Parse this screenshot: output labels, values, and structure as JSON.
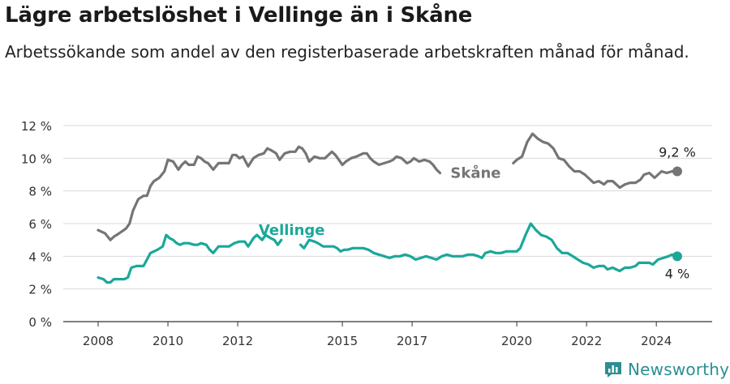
{
  "title": "Lägre arbetslöshet i Vellinge än i Skåne",
  "subtitle": "Arbetssökande som andel av den registerbaserade arbetskraften månad för månad.",
  "logo": {
    "text": "Newsworthy",
    "icon": "newsworthy-logo-icon"
  },
  "colors": {
    "skane": "#757575",
    "vellinge": "#1aa89a",
    "grid": "#d9d9d9",
    "text": "#1a1a1a"
  },
  "chart_data": {
    "type": "line",
    "title": "Lägre arbetslöshet i Vellinge än i Skåne",
    "xlabel": "",
    "ylabel": "",
    "ylim": [
      0,
      12
    ],
    "y_ticks": [
      0,
      2,
      4,
      6,
      8,
      10,
      12
    ],
    "y_tick_labels": [
      "0 %",
      "2 %",
      "4 %",
      "6 %",
      "8 %",
      "10 %",
      "12 %"
    ],
    "x_ticks": [
      2008,
      2010,
      2012,
      2015,
      2017,
      2020,
      2022,
      2024
    ],
    "x_tick_labels": [
      "2008",
      "2010",
      "2012",
      "2015",
      "2017",
      "2020",
      "2022",
      "2024"
    ],
    "grid": true,
    "series": [
      {
        "name": "Skåne",
        "color": "#757575",
        "end_label": "9,2 %",
        "points": [
          [
            2008.0,
            5.6
          ],
          [
            2008.2,
            5.4
          ],
          [
            2008.35,
            5.0
          ],
          [
            2008.45,
            5.2
          ],
          [
            2008.6,
            5.4
          ],
          [
            2008.8,
            5.7
          ],
          [
            2008.9,
            6.0
          ],
          [
            2009.0,
            6.8
          ],
          [
            2009.15,
            7.5
          ],
          [
            2009.3,
            7.7
          ],
          [
            2009.4,
            7.7
          ],
          [
            2009.5,
            8.3
          ],
          [
            2009.6,
            8.6
          ],
          [
            2009.75,
            8.8
          ],
          [
            2009.9,
            9.2
          ],
          [
            2010.0,
            9.9
          ],
          [
            2010.15,
            9.8
          ],
          [
            2010.3,
            9.3
          ],
          [
            2010.4,
            9.6
          ],
          [
            2010.5,
            9.8
          ],
          [
            2010.6,
            9.6
          ],
          [
            2010.75,
            9.6
          ],
          [
            2010.85,
            10.1
          ],
          [
            2010.95,
            10.0
          ],
          [
            2011.05,
            9.8
          ],
          [
            2011.15,
            9.7
          ],
          [
            2011.3,
            9.3
          ],
          [
            2011.45,
            9.7
          ],
          [
            2011.6,
            9.7
          ],
          [
            2011.75,
            9.7
          ],
          [
            2011.85,
            10.2
          ],
          [
            2011.95,
            10.2
          ],
          [
            2012.05,
            10.0
          ],
          [
            2012.15,
            10.1
          ],
          [
            2012.3,
            9.5
          ],
          [
            2012.45,
            10.0
          ],
          [
            2012.6,
            10.2
          ],
          [
            2012.75,
            10.3
          ],
          [
            2012.85,
            10.6
          ],
          [
            2012.95,
            10.5
          ],
          [
            2013.1,
            10.3
          ],
          [
            2013.2,
            9.9
          ],
          [
            2013.35,
            10.3
          ],
          [
            2013.5,
            10.4
          ],
          [
            2013.65,
            10.4
          ],
          [
            2013.75,
            10.7
          ],
          [
            2013.85,
            10.6
          ],
          [
            2013.95,
            10.3
          ],
          [
            2014.05,
            9.8
          ],
          [
            2014.2,
            10.1
          ],
          [
            2014.35,
            10.0
          ],
          [
            2014.5,
            10.0
          ],
          [
            2014.6,
            10.2
          ],
          [
            2014.7,
            10.4
          ],
          [
            2014.8,
            10.2
          ],
          [
            2014.9,
            9.9
          ],
          [
            2015.0,
            9.6
          ],
          [
            2015.1,
            9.8
          ],
          [
            2015.25,
            10.0
          ],
          [
            2015.4,
            10.1
          ],
          [
            2015.5,
            10.2
          ],
          [
            2015.6,
            10.3
          ],
          [
            2015.7,
            10.3
          ],
          [
            2015.8,
            10.0
          ],
          [
            2015.9,
            9.8
          ],
          [
            2016.05,
            9.6
          ],
          [
            2016.2,
            9.7
          ],
          [
            2016.35,
            9.8
          ],
          [
            2016.45,
            9.9
          ],
          [
            2016.55,
            10.1
          ],
          [
            2016.7,
            10.0
          ],
          [
            2016.85,
            9.7
          ],
          [
            2016.95,
            9.8
          ],
          [
            2017.05,
            10.0
          ],
          [
            2017.2,
            9.8
          ],
          [
            2017.35,
            9.9
          ],
          [
            2017.5,
            9.8
          ],
          [
            2017.6,
            9.6
          ],
          [
            2017.7,
            9.3
          ],
          [
            2017.8,
            9.1
          ],
          null,
          [
            2019.9,
            9.7
          ],
          [
            2020.0,
            9.9
          ],
          [
            2020.15,
            10.1
          ],
          [
            2020.3,
            11.0
          ],
          [
            2020.45,
            11.5
          ],
          [
            2020.6,
            11.2
          ],
          [
            2020.75,
            11.0
          ],
          [
            2020.9,
            10.9
          ],
          [
            2021.05,
            10.6
          ],
          [
            2021.2,
            10.0
          ],
          [
            2021.35,
            9.9
          ],
          [
            2021.5,
            9.5
          ],
          [
            2021.65,
            9.2
          ],
          [
            2021.8,
            9.2
          ],
          [
            2021.95,
            9.0
          ],
          [
            2022.05,
            8.8
          ],
          [
            2022.2,
            8.5
          ],
          [
            2022.35,
            8.6
          ],
          [
            2022.5,
            8.4
          ],
          [
            2022.6,
            8.6
          ],
          [
            2022.75,
            8.6
          ],
          [
            2022.85,
            8.4
          ],
          [
            2022.95,
            8.2
          ],
          [
            2023.1,
            8.4
          ],
          [
            2023.25,
            8.5
          ],
          [
            2023.4,
            8.5
          ],
          [
            2023.55,
            8.7
          ],
          [
            2023.65,
            9.0
          ],
          [
            2023.8,
            9.1
          ],
          [
            2023.95,
            8.8
          ],
          [
            2024.05,
            9.0
          ],
          [
            2024.15,
            9.2
          ],
          [
            2024.3,
            9.1
          ],
          [
            2024.45,
            9.2
          ],
          [
            2024.6,
            9.2
          ]
        ]
      },
      {
        "name": "Vellinge",
        "color": "#1aa89a",
        "end_label": "4 %",
        "points": [
          [
            2008.0,
            2.7
          ],
          [
            2008.15,
            2.6
          ],
          [
            2008.25,
            2.4
          ],
          [
            2008.35,
            2.4
          ],
          [
            2008.45,
            2.6
          ],
          [
            2008.6,
            2.6
          ],
          [
            2008.75,
            2.6
          ],
          [
            2008.85,
            2.7
          ],
          [
            2008.95,
            3.3
          ],
          [
            2009.1,
            3.4
          ],
          [
            2009.3,
            3.4
          ],
          [
            2009.4,
            3.8
          ],
          [
            2009.5,
            4.2
          ],
          [
            2009.7,
            4.4
          ],
          [
            2009.85,
            4.6
          ],
          [
            2009.95,
            5.3
          ],
          [
            2010.05,
            5.1
          ],
          [
            2010.15,
            5.0
          ],
          [
            2010.25,
            4.8
          ],
          [
            2010.35,
            4.7
          ],
          [
            2010.45,
            4.8
          ],
          [
            2010.6,
            4.8
          ],
          [
            2010.75,
            4.7
          ],
          [
            2010.85,
            4.7
          ],
          [
            2010.95,
            4.8
          ],
          [
            2011.1,
            4.7
          ],
          [
            2011.2,
            4.4
          ],
          [
            2011.3,
            4.2
          ],
          [
            2011.45,
            4.6
          ],
          [
            2011.6,
            4.6
          ],
          [
            2011.75,
            4.6
          ],
          [
            2011.9,
            4.8
          ],
          [
            2012.05,
            4.9
          ],
          [
            2012.2,
            4.9
          ],
          [
            2012.3,
            4.6
          ],
          [
            2012.45,
            5.1
          ],
          [
            2012.55,
            5.3
          ],
          [
            2012.7,
            5.0
          ],
          [
            2012.8,
            5.3
          ],
          [
            2012.95,
            5.1
          ],
          [
            2013.05,
            5.0
          ],
          [
            2013.15,
            4.7
          ],
          [
            2013.25,
            5.0
          ],
          null,
          [
            2013.8,
            4.7
          ],
          [
            2013.9,
            4.5
          ],
          [
            2014.05,
            5.0
          ],
          [
            2014.2,
            4.9
          ],
          [
            2014.3,
            4.8
          ],
          [
            2014.45,
            4.6
          ],
          [
            2014.6,
            4.6
          ],
          [
            2014.75,
            4.6
          ],
          [
            2014.85,
            4.5
          ],
          [
            2014.95,
            4.3
          ],
          [
            2015.05,
            4.4
          ],
          [
            2015.15,
            4.4
          ],
          [
            2015.3,
            4.5
          ],
          [
            2015.45,
            4.5
          ],
          [
            2015.6,
            4.5
          ],
          [
            2015.75,
            4.4
          ],
          [
            2015.9,
            4.2
          ],
          [
            2016.05,
            4.1
          ],
          [
            2016.2,
            4.0
          ],
          [
            2016.35,
            3.9
          ],
          [
            2016.5,
            4.0
          ],
          [
            2016.65,
            4.0
          ],
          [
            2016.8,
            4.1
          ],
          [
            2016.95,
            4.0
          ],
          [
            2017.1,
            3.8
          ],
          [
            2017.25,
            3.9
          ],
          [
            2017.4,
            4.0
          ],
          [
            2017.55,
            3.9
          ],
          [
            2017.7,
            3.8
          ],
          [
            2017.85,
            4.0
          ],
          [
            2018.0,
            4.1
          ],
          [
            2018.15,
            4.0
          ],
          [
            2018.3,
            4.0
          ],
          [
            2018.45,
            4.0
          ],
          [
            2018.6,
            4.1
          ],
          [
            2018.75,
            4.1
          ],
          [
            2018.9,
            4.0
          ],
          [
            2019.0,
            3.9
          ],
          [
            2019.1,
            4.2
          ],
          [
            2019.25,
            4.3
          ],
          [
            2019.4,
            4.2
          ],
          [
            2019.55,
            4.2
          ],
          [
            2019.7,
            4.3
          ],
          [
            2019.85,
            4.3
          ],
          [
            2020.0,
            4.3
          ],
          [
            2020.1,
            4.5
          ],
          [
            2020.25,
            5.3
          ],
          [
            2020.4,
            6.0
          ],
          [
            2020.55,
            5.6
          ],
          [
            2020.7,
            5.3
          ],
          [
            2020.85,
            5.2
          ],
          [
            2021.0,
            5.0
          ],
          [
            2021.15,
            4.5
          ],
          [
            2021.3,
            4.2
          ],
          [
            2021.45,
            4.2
          ],
          [
            2021.6,
            4.0
          ],
          [
            2021.75,
            3.8
          ],
          [
            2021.9,
            3.6
          ],
          [
            2022.05,
            3.5
          ],
          [
            2022.2,
            3.3
          ],
          [
            2022.35,
            3.4
          ],
          [
            2022.5,
            3.4
          ],
          [
            2022.6,
            3.2
          ],
          [
            2022.75,
            3.3
          ],
          [
            2022.85,
            3.2
          ],
          [
            2022.95,
            3.1
          ],
          [
            2023.1,
            3.3
          ],
          [
            2023.25,
            3.3
          ],
          [
            2023.4,
            3.4
          ],
          [
            2023.5,
            3.6
          ],
          [
            2023.65,
            3.6
          ],
          [
            2023.8,
            3.6
          ],
          [
            2023.9,
            3.5
          ],
          [
            2024.05,
            3.8
          ],
          [
            2024.2,
            3.9
          ],
          [
            2024.35,
            4.0
          ],
          [
            2024.45,
            4.1
          ],
          [
            2024.6,
            4.0
          ]
        ]
      }
    ]
  }
}
